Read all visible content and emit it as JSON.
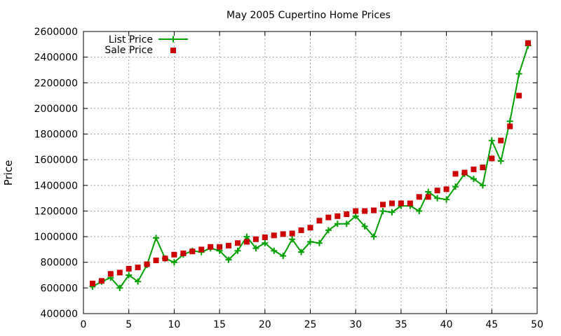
{
  "chart_data": {
    "type": "line",
    "title": "May 2005 Cupertino Home Prices",
    "xlabel": "",
    "ylabel": "Price",
    "xlim": [
      0,
      50
    ],
    "ylim": [
      400000,
      2600000
    ],
    "x_ticks": [
      0,
      5,
      10,
      15,
      20,
      25,
      30,
      35,
      40,
      45,
      50
    ],
    "y_ticks": [
      400000,
      600000,
      800000,
      1000000,
      1200000,
      1400000,
      1600000,
      1800000,
      2000000,
      2200000,
      2400000,
      2600000
    ],
    "grid": true,
    "legend_position": "top-left",
    "series": [
      {
        "name": "List Price",
        "style": "line-with-plus-markers",
        "color": "#00a000",
        "x": [
          1,
          2,
          3,
          4,
          5,
          6,
          7,
          8,
          9,
          10,
          11,
          12,
          13,
          14,
          15,
          16,
          17,
          18,
          19,
          20,
          21,
          22,
          23,
          24,
          25,
          26,
          27,
          28,
          29,
          30,
          31,
          32,
          33,
          34,
          35,
          36,
          37,
          38,
          39,
          40,
          41,
          42,
          43,
          44,
          45,
          46,
          47,
          48,
          49
        ],
        "y": [
          610000,
          650000,
          680000,
          600000,
          700000,
          650000,
          780000,
          990000,
          830000,
          800000,
          860000,
          890000,
          880000,
          910000,
          890000,
          820000,
          890000,
          1000000,
          910000,
          950000,
          890000,
          850000,
          980000,
          880000,
          960000,
          950000,
          1050000,
          1100000,
          1100000,
          1160000,
          1080000,
          1000000,
          1200000,
          1190000,
          1240000,
          1240000,
          1200000,
          1350000,
          1300000,
          1290000,
          1390000,
          1490000,
          1450000,
          1400000,
          1750000,
          1590000,
          1900000,
          2270000,
          2490000
        ]
      },
      {
        "name": "Sale Price",
        "style": "square-markers",
        "color": "#cc0000",
        "x": [
          1,
          2,
          3,
          4,
          5,
          6,
          7,
          8,
          9,
          10,
          11,
          12,
          13,
          14,
          15,
          16,
          17,
          18,
          19,
          20,
          21,
          22,
          23,
          24,
          25,
          26,
          27,
          28,
          29,
          30,
          31,
          32,
          33,
          34,
          35,
          36,
          37,
          38,
          39,
          40,
          41,
          42,
          43,
          44,
          45,
          46,
          47,
          48,
          49
        ],
        "y": [
          635000,
          655000,
          710000,
          720000,
          750000,
          760000,
          785000,
          815000,
          830000,
          860000,
          870000,
          885000,
          900000,
          920000,
          920000,
          930000,
          950000,
          960000,
          980000,
          995000,
          1010000,
          1020000,
          1025000,
          1050000,
          1070000,
          1125000,
          1150000,
          1160000,
          1175000,
          1200000,
          1200000,
          1205000,
          1250000,
          1260000,
          1260000,
          1260000,
          1310000,
          1310000,
          1360000,
          1370000,
          1490000,
          1500000,
          1525000,
          1540000,
          1610000,
          1750000,
          1860000,
          2100000,
          2510000
        ]
      }
    ]
  }
}
